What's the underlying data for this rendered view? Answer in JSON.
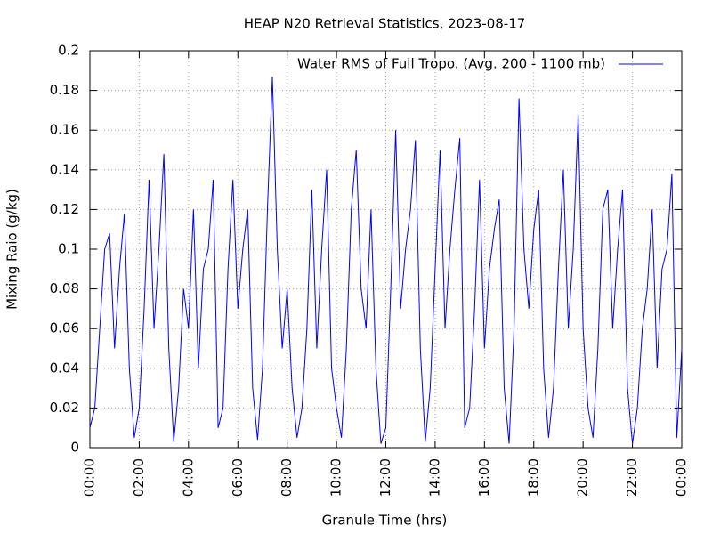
{
  "chart_data": {
    "type": "line",
    "title": "HEAP N20 Retrieval Statistics, 2023-08-17",
    "x_label": "Granule Time (hrs)",
    "y_label": "Mixing Raio (g/kg)",
    "x": [
      0,
      0.2,
      0.4,
      0.6,
      0.8,
      1,
      1.2,
      1.4,
      1.6,
      1.8,
      2,
      2.2,
      2.4,
      2.6,
      2.8,
      3,
      3.2,
      3.4,
      3.6,
      3.8,
      4,
      4.2,
      4.4,
      4.6,
      4.8,
      5,
      5.2,
      5.4,
      5.6,
      5.8,
      6,
      6.2,
      6.4,
      6.6,
      6.8,
      7,
      7.2,
      7.4,
      7.6,
      7.8,
      8,
      8.2,
      8.4,
      8.6,
      8.8,
      9,
      9.2,
      9.4,
      9.6,
      9.8,
      10,
      10.2,
      10.4,
      10.6,
      10.8,
      11,
      11.2,
      11.4,
      11.6,
      11.8,
      12,
      12.2,
      12.4,
      12.6,
      12.8,
      13,
      13.2,
      13.4,
      13.6,
      13.8,
      14,
      14.2,
      14.4,
      14.6,
      14.8,
      15,
      15.2,
      15.4,
      15.6,
      15.8,
      16,
      16.2,
      16.4,
      16.6,
      16.8,
      17,
      17.2,
      17.4,
      17.6,
      17.8,
      18,
      18.2,
      18.4,
      18.6,
      18.8,
      19,
      19.2,
      19.4,
      19.6,
      19.8,
      20,
      20.2,
      20.4,
      20.6,
      20.8,
      21,
      21.2,
      21.4,
      21.6,
      21.8,
      22,
      22.2,
      22.4,
      22.6,
      22.8,
      23,
      23.2,
      23.4,
      23.6,
      23.8,
      24
    ],
    "series": [
      {
        "name": "Water RMS of Full Tropo. (Avg. 200 - 1100 mb)",
        "color": "#0000ff",
        "values": [
          0.01,
          0.02,
          0.06,
          0.1,
          0.108,
          0.05,
          0.09,
          0.118,
          0.04,
          0.005,
          0.02,
          0.07,
          0.135,
          0.06,
          0.1,
          0.148,
          0.05,
          0.003,
          0.03,
          0.08,
          0.06,
          0.12,
          0.04,
          0.09,
          0.1,
          0.135,
          0.01,
          0.02,
          0.09,
          0.135,
          0.07,
          0.1,
          0.12,
          0.03,
          0.004,
          0.04,
          0.12,
          0.187,
          0.1,
          0.05,
          0.08,
          0.03,
          0.005,
          0.02,
          0.06,
          0.13,
          0.05,
          0.1,
          0.14,
          0.04,
          0.02,
          0.005,
          0.05,
          0.12,
          0.15,
          0.08,
          0.06,
          0.12,
          0.04,
          0.002,
          0.01,
          0.08,
          0.16,
          0.07,
          0.1,
          0.12,
          0.155,
          0.05,
          0.003,
          0.03,
          0.09,
          0.15,
          0.06,
          0.1,
          0.13,
          0.156,
          0.01,
          0.02,
          0.07,
          0.135,
          0.05,
          0.09,
          0.11,
          0.125,
          0.03,
          0.002,
          0.06,
          0.176,
          0.1,
          0.07,
          0.11,
          0.13,
          0.04,
          0.005,
          0.03,
          0.09,
          0.14,
          0.06,
          0.1,
          0.168,
          0.06,
          0.02,
          0.005,
          0.05,
          0.12,
          0.13,
          0.06,
          0.1,
          0.13,
          0.03,
          0.002,
          0.02,
          0.06,
          0.08,
          0.12,
          0.04,
          0.09,
          0.1,
          0.138,
          0.005,
          0.05
        ]
      }
    ],
    "xlim": [
      0,
      24
    ],
    "xticks": [
      {
        "value": 0,
        "label": "00:00"
      },
      {
        "value": 2,
        "label": "02:00"
      },
      {
        "value": 4,
        "label": "04:00"
      },
      {
        "value": 6,
        "label": "06:00"
      },
      {
        "value": 8,
        "label": "08:00"
      },
      {
        "value": 10,
        "label": "10:00"
      },
      {
        "value": 12,
        "label": "12:00"
      },
      {
        "value": 14,
        "label": "14:00"
      },
      {
        "value": 16,
        "label": "16:00"
      },
      {
        "value": 18,
        "label": "18:00"
      },
      {
        "value": 20,
        "label": "20:00"
      },
      {
        "value": 22,
        "label": "22:00"
      },
      {
        "value": 24,
        "label": "00:00"
      }
    ],
    "ylim": [
      0,
      0.2
    ],
    "yticks": [
      0,
      0.02,
      0.04,
      0.06,
      0.08,
      0.1,
      0.12,
      0.14,
      0.16,
      0.18,
      0.2
    ],
    "grid": true,
    "legend": "top-right"
  }
}
